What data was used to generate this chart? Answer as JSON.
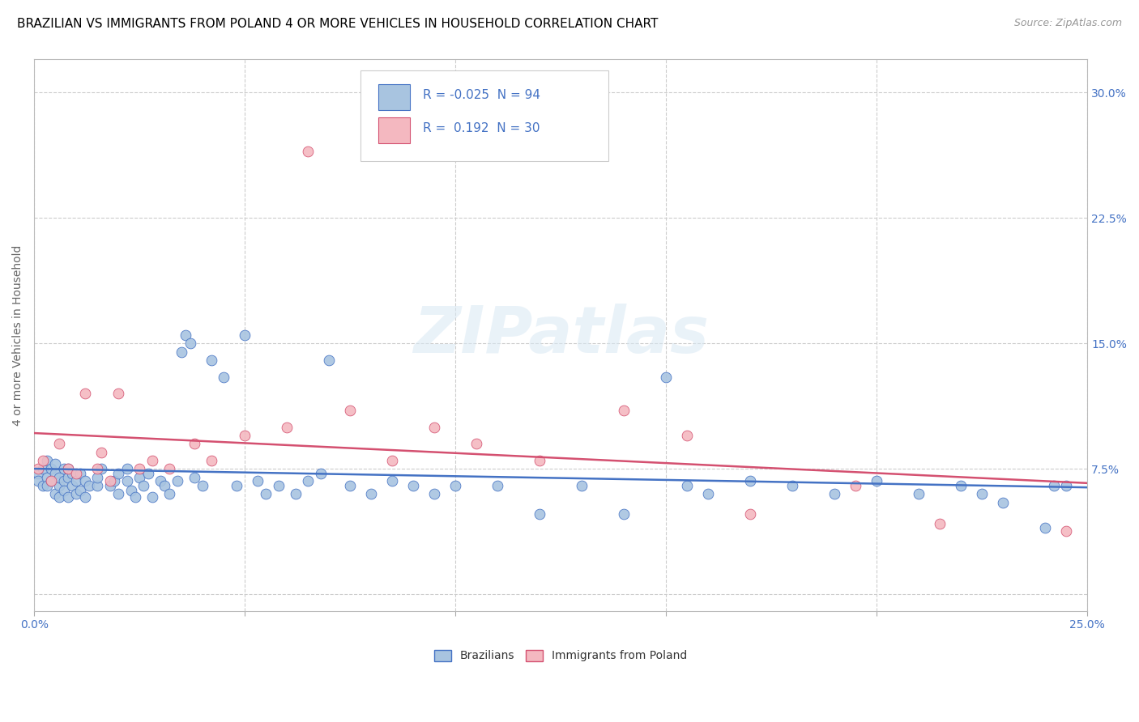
{
  "title": "BRAZILIAN VS IMMIGRANTS FROM POLAND 4 OR MORE VEHICLES IN HOUSEHOLD CORRELATION CHART",
  "source": "Source: ZipAtlas.com",
  "ylabel": "4 or more Vehicles in Household",
  "xlim": [
    0.0,
    0.25
  ],
  "ylim": [
    -0.01,
    0.32
  ],
  "xtick_vals": [
    0.0,
    0.05,
    0.1,
    0.15,
    0.2,
    0.25
  ],
  "xticklabels": [
    "0.0%",
    "",
    "",
    "",
    "",
    "25.0%"
  ],
  "ytick_vals": [
    0.0,
    0.075,
    0.15,
    0.225,
    0.3
  ],
  "yticklabels": [
    "",
    "7.5%",
    "15.0%",
    "22.5%",
    "30.0%"
  ],
  "brazilian_R": -0.025,
  "brazilian_N": 94,
  "poland_R": 0.192,
  "poland_N": 30,
  "legend_label_1": "Brazilians",
  "legend_label_2": "Immigrants from Poland",
  "color_brazilian_fill": "#a8c4e0",
  "color_polish_fill": "#f4b8c0",
  "color_line_brazilian": "#4472c4",
  "color_line_polish": "#d45070",
  "color_text_blue": "#4472c4",
  "color_grid": "#cccccc",
  "watermark_text": "ZIPatlas",
  "title_fontsize": 11,
  "axis_label_fontsize": 10,
  "tick_fontsize": 10,
  "legend_fontsize": 11
}
